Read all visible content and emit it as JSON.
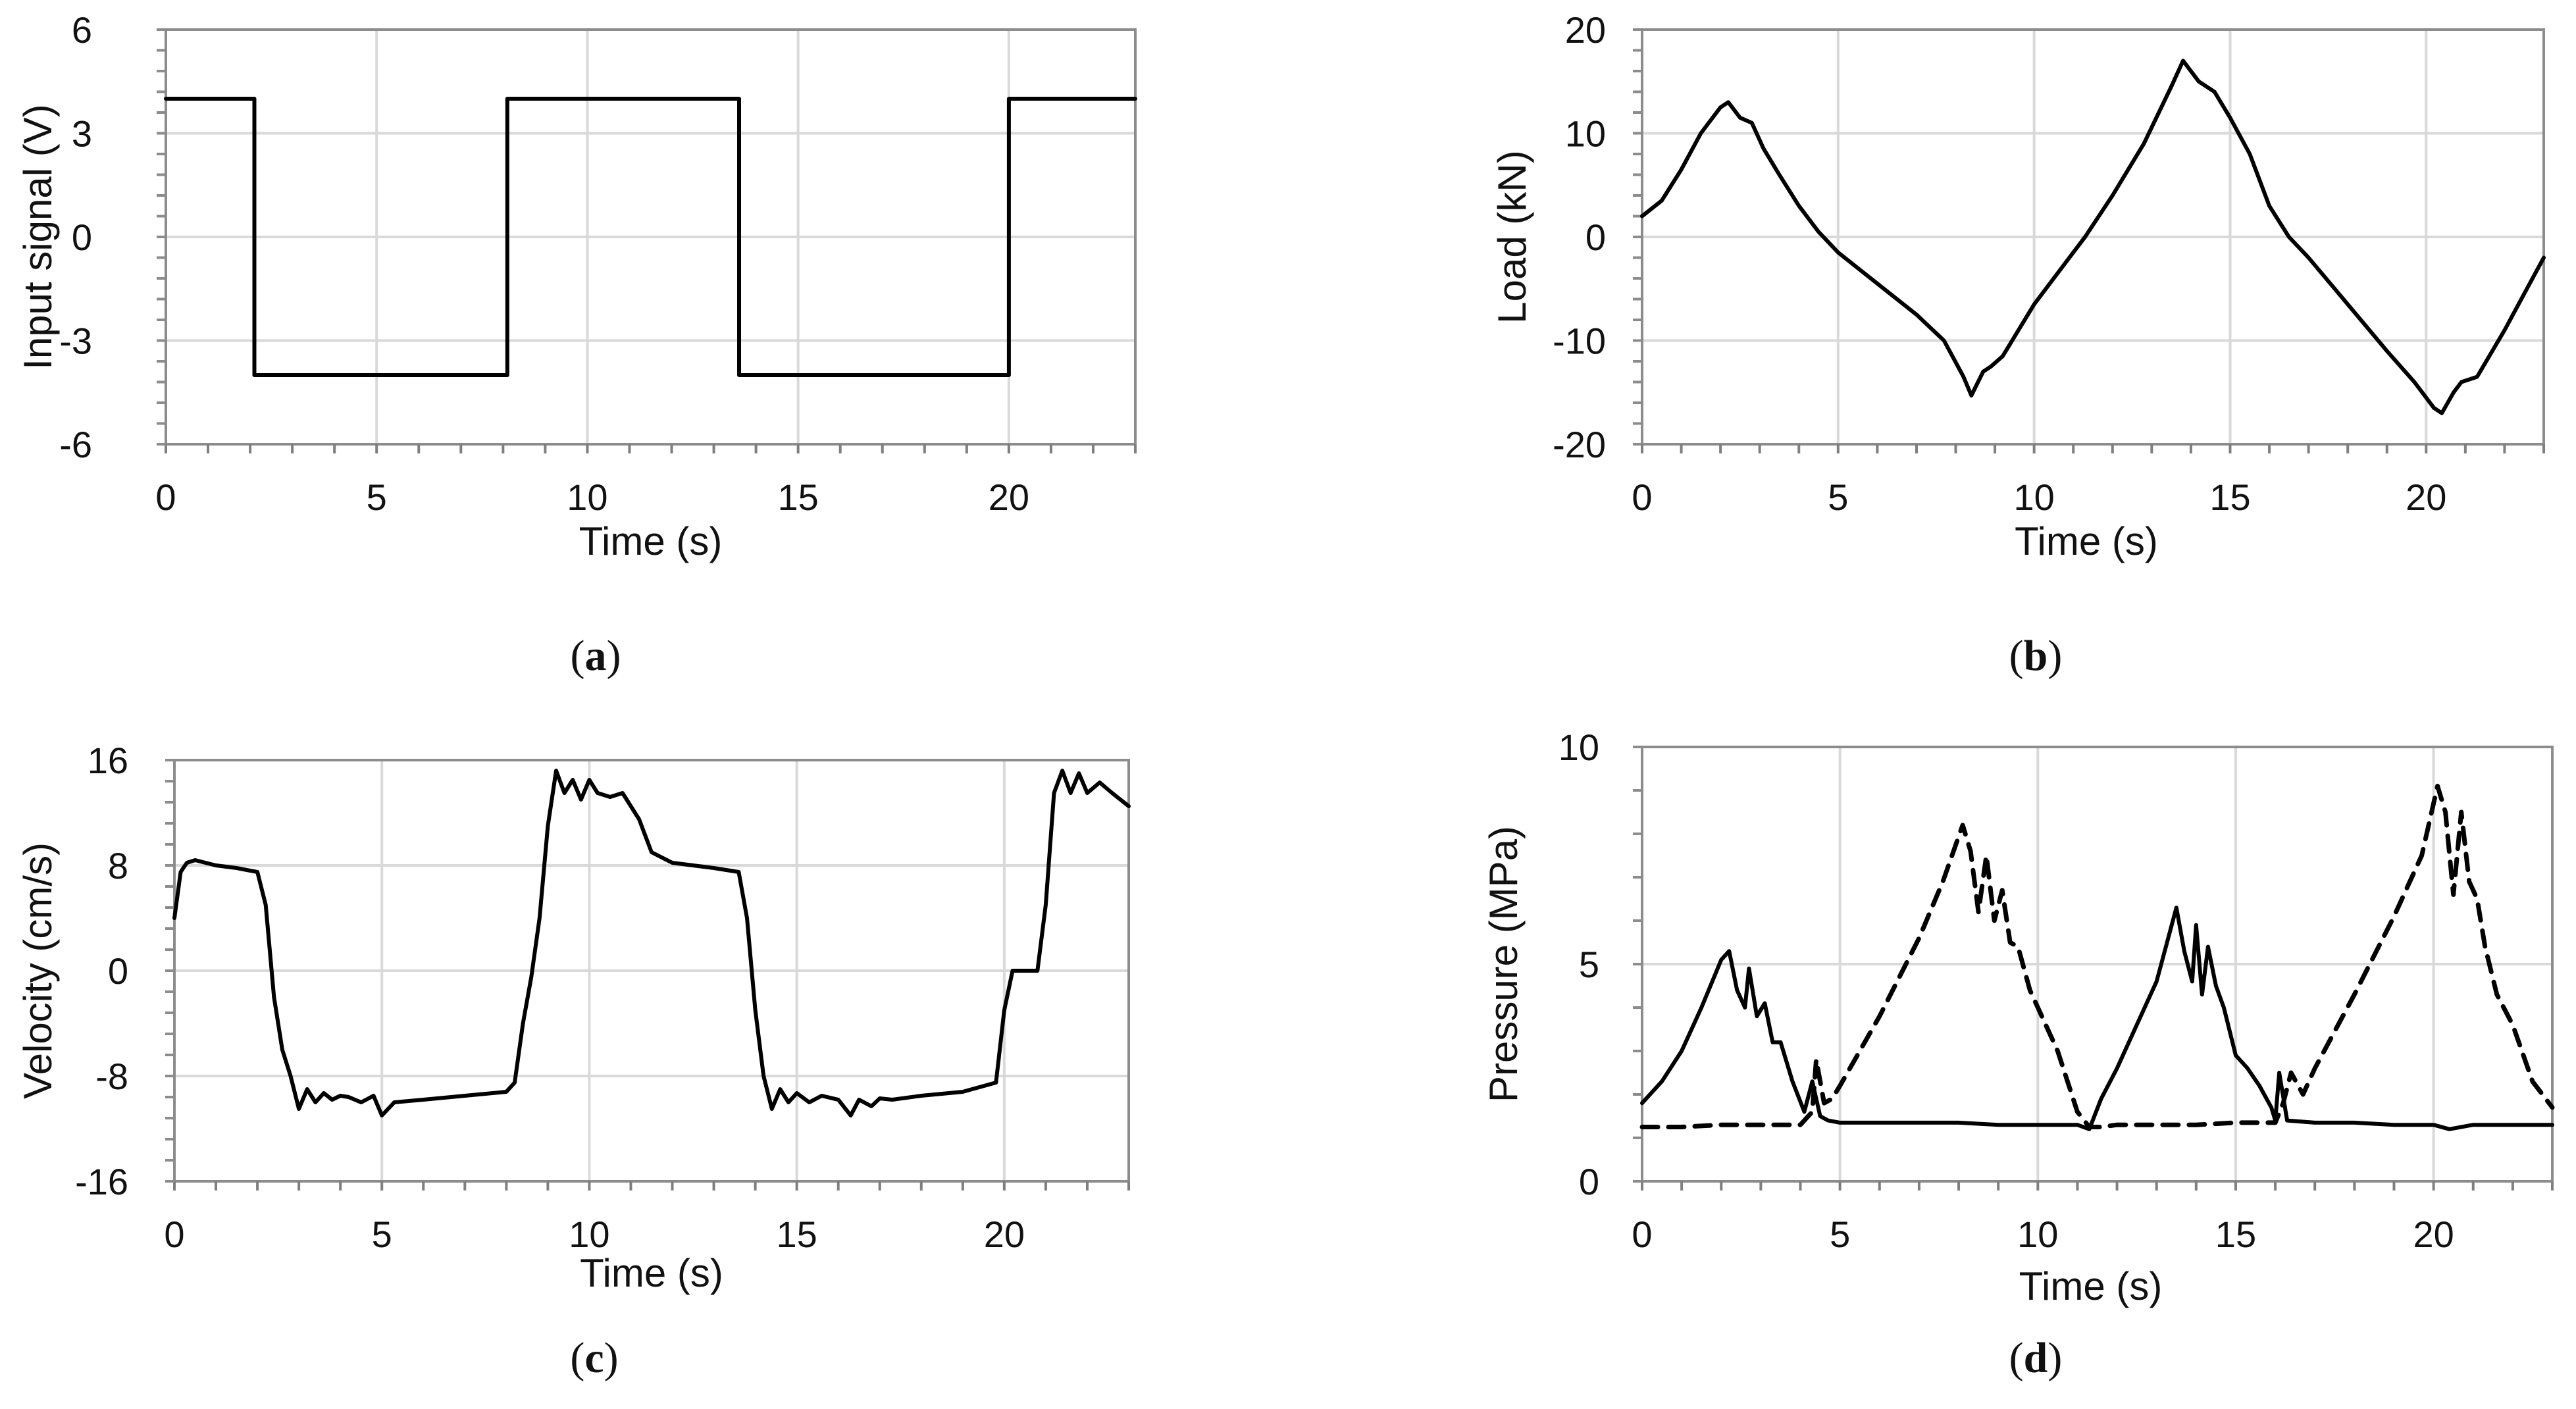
{
  "chart_data": [
    {
      "id": "a",
      "type": "line",
      "panel_label": "a",
      "xlabel": "Time (s)",
      "ylabel": "Input signal (V)",
      "xlim": [
        0,
        23
      ],
      "ylim": [
        -6,
        6
      ],
      "x_ticks": [
        0,
        5,
        10,
        15,
        20
      ],
      "x_tick_labels": [
        "0",
        "5",
        "10",
        "15",
        "20"
      ],
      "y_ticks": [
        6,
        3,
        0,
        -3,
        -6
      ],
      "y_tick_labels": [
        "6",
        "3",
        "0",
        "-3",
        "-6"
      ],
      "grid": true,
      "series": [
        {
          "name": "Input signal",
          "style": "solid",
          "x": [
            0,
            2.1,
            2.1,
            8.1,
            8.1,
            13.6,
            13.6,
            20.0,
            20.0,
            23.0
          ],
          "y": [
            4,
            4,
            -4,
            -4,
            4,
            4,
            -4,
            -4,
            4,
            4
          ]
        }
      ]
    },
    {
      "id": "b",
      "type": "line",
      "panel_label": "b",
      "xlabel": "Time (s)",
      "ylabel": "Load (kN)",
      "xlim": [
        0,
        23
      ],
      "ylim": [
        -20,
        20
      ],
      "x_ticks": [
        0,
        5,
        10,
        15,
        20
      ],
      "x_tick_labels": [
        "0",
        "5",
        "10",
        "15",
        "20"
      ],
      "y_ticks": [
        20,
        10,
        0,
        -10,
        -20
      ],
      "y_tick_labels": [
        "20",
        "10",
        "0",
        "-10",
        "-20"
      ],
      "grid": true,
      "series": [
        {
          "name": "Load",
          "style": "solid",
          "x": [
            0,
            0.5,
            1,
            1.5,
            2,
            2.2,
            2.5,
            2.8,
            3.1,
            3.5,
            4,
            4.5,
            5,
            6,
            7,
            7.7,
            8.2,
            8.4,
            8.7,
            8.9,
            9.2,
            10,
            11,
            11.3,
            12,
            12.8,
            13.5,
            13.8,
            14.2,
            14.6,
            15,
            15.5,
            16,
            16.5,
            17,
            18,
            19,
            19.7,
            20.2,
            20.4,
            20.7,
            20.9,
            21.3,
            22,
            22.5,
            23
          ],
          "y": [
            2,
            3.5,
            6.5,
            10,
            12.5,
            13,
            11.5,
            11,
            8.5,
            6,
            3,
            0.5,
            -1.5,
            -4.5,
            -7.5,
            -10,
            -13.5,
            -15.3,
            -13,
            -12.5,
            -11.5,
            -6.5,
            -1.5,
            0,
            4,
            9,
            14.5,
            17,
            15,
            14,
            11.5,
            8,
            3,
            0,
            -2,
            -6.5,
            -11,
            -14,
            -16.5,
            -17,
            -15,
            -14,
            -13.5,
            -9,
            -5.5,
            -2
          ]
        }
      ]
    },
    {
      "id": "c",
      "type": "line",
      "panel_label": "c",
      "xlabel": "Time (s)",
      "ylabel": "Velocity (cm/s)",
      "xlim": [
        0,
        23
      ],
      "ylim": [
        -16,
        16
      ],
      "x_ticks": [
        0,
        5,
        10,
        15,
        20
      ],
      "x_tick_labels": [
        "0",
        "5",
        "10",
        "15",
        "20"
      ],
      "y_ticks": [
        16,
        8,
        0,
        -8,
        -16
      ],
      "y_tick_labels": [
        "16",
        "8",
        "0",
        "-8",
        "-16"
      ],
      "grid": true,
      "series": [
        {
          "name": "Velocity",
          "style": "solid",
          "x": [
            0,
            0.15,
            0.3,
            0.5,
            1,
            1.5,
            2,
            2.2,
            2.4,
            2.6,
            2.8,
            3.0,
            3.2,
            3.4,
            3.6,
            3.8,
            4.0,
            4.2,
            4.5,
            4.8,
            5.0,
            5.3,
            6,
            7,
            8,
            8.2,
            8.4,
            8.6,
            8.8,
            9.0,
            9.2,
            9.4,
            9.6,
            9.8,
            10.0,
            10.2,
            10.5,
            10.8,
            11.0,
            11.2,
            11.5,
            12,
            13,
            13.6,
            13.8,
            14.0,
            14.2,
            14.4,
            14.6,
            14.8,
            15.0,
            15.3,
            15.6,
            16.0,
            16.3,
            16.5,
            16.8,
            17.0,
            17.3,
            18,
            19,
            19.8,
            20.0,
            20.2,
            20.4,
            20.6,
            20.8,
            21.0,
            21.2,
            21.4,
            21.6,
            21.8,
            22.0,
            22.3,
            22.6,
            23
          ],
          "y": [
            4,
            7.5,
            8.2,
            8.4,
            8,
            7.8,
            7.5,
            5,
            -2,
            -6,
            -8,
            -10.5,
            -9,
            -10,
            -9.3,
            -9.8,
            -9.5,
            -9.6,
            -10,
            -9.5,
            -11,
            -10,
            -9.8,
            -9.5,
            -9.2,
            -8.5,
            -4,
            -0.5,
            4,
            11,
            15.2,
            13.5,
            14.5,
            13,
            14.5,
            13.5,
            13.2,
            13.5,
            12.5,
            11.5,
            9,
            8.2,
            7.8,
            7.5,
            4,
            -3,
            -8,
            -10.5,
            -9,
            -10,
            -9.3,
            -10,
            -9.5,
            -9.8,
            -11,
            -9.8,
            -10.3,
            -9.7,
            -9.8,
            -9.5,
            -9.2,
            -8.5,
            -3,
            0,
            0,
            0,
            0,
            5,
            13.5,
            15.2,
            13.5,
            15,
            13.5,
            14.3,
            13.5,
            12.5
          ]
        }
      ]
    },
    {
      "id": "d",
      "type": "line",
      "panel_label": "d",
      "xlabel": "Time (s)",
      "ylabel": "Pressure (MPa)",
      "xlim": [
        0,
        23
      ],
      "ylim": [
        0,
        10
      ],
      "x_ticks": [
        0,
        5,
        10,
        15,
        20
      ],
      "x_tick_labels": [
        "0",
        "5",
        "10",
        "15",
        "20"
      ],
      "y_ticks": [
        10,
        5,
        0
      ],
      "y_tick_labels": [
        "10",
        "5",
        "0"
      ],
      "grid": true,
      "series": [
        {
          "name": "Pressure (solid)",
          "style": "solid",
          "x": [
            0,
            0.5,
            1,
            1.5,
            2.0,
            2.2,
            2.4,
            2.6,
            2.7,
            2.9,
            3.1,
            3.3,
            3.5,
            3.8,
            4.1,
            4.3,
            4.5,
            4.7,
            5,
            6,
            7,
            8,
            9,
            10,
            11,
            11.3,
            11.6,
            12,
            12.5,
            13,
            13.5,
            13.7,
            13.9,
            14.0,
            14.15,
            14.3,
            14.5,
            14.7,
            15.0,
            15.3,
            15.6,
            15.9,
            16.0,
            16.1,
            16.3,
            17,
            18,
            19,
            20,
            20.4,
            21,
            22,
            23
          ],
          "y": [
            1.8,
            2.3,
            3.0,
            4.0,
            5.1,
            5.3,
            4.4,
            4.0,
            4.9,
            3.8,
            4.1,
            3.2,
            3.2,
            2.3,
            1.6,
            2.3,
            1.5,
            1.4,
            1.35,
            1.35,
            1.35,
            1.35,
            1.3,
            1.3,
            1.3,
            1.2,
            1.9,
            2.6,
            3.6,
            4.6,
            6.3,
            5.3,
            4.6,
            5.9,
            4.3,
            5.4,
            4.5,
            4.0,
            2.9,
            2.6,
            2.2,
            1.7,
            1.4,
            2.5,
            1.4,
            1.35,
            1.35,
            1.3,
            1.3,
            1.2,
            1.3,
            1.3,
            1.3
          ]
        },
        {
          "name": "Pressure (dashed)",
          "style": "dashed",
          "x": [
            0,
            1,
            2,
            3,
            4,
            4.3,
            4.4,
            4.6,
            4.8,
            5,
            6,
            7,
            7.6,
            8.1,
            8.3,
            8.5,
            8.7,
            8.9,
            9.1,
            9.3,
            9.5,
            9.8,
            10.5,
            11,
            11.3,
            11.6,
            12,
            13,
            14,
            15,
            16,
            16.2,
            16.4,
            16.7,
            17,
            18,
            19,
            19.7,
            20.1,
            20.3,
            20.5,
            20.7,
            20.9,
            21.1,
            21.3,
            21.6,
            22,
            22.5,
            23
          ],
          "y": [
            1.25,
            1.25,
            1.3,
            1.3,
            1.3,
            1.6,
            2.8,
            1.8,
            1.9,
            2.2,
            3.8,
            5.6,
            6.9,
            8.2,
            7.6,
            6.2,
            7.5,
            6.0,
            6.7,
            5.5,
            5.4,
            4.4,
            3.0,
            1.6,
            1.25,
            1.25,
            1.3,
            1.3,
            1.3,
            1.35,
            1.35,
            1.8,
            2.5,
            2.0,
            2.6,
            4.3,
            6.1,
            7.5,
            9.1,
            8.5,
            6.6,
            8.5,
            6.9,
            6.5,
            5.4,
            4.3,
            3.6,
            2.3,
            1.7
          ]
        }
      ]
    }
  ]
}
